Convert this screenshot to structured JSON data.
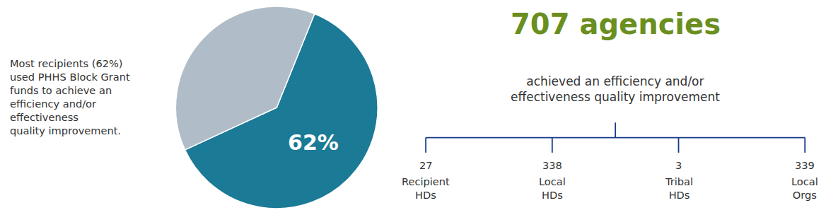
{
  "chart_data": [
    {
      "type": "pie",
      "values": [
        62,
        38
      ],
      "colors": [
        "#1b7a96",
        "#b0bdc8"
      ],
      "data_labels": true,
      "value_labels": [
        "62%",
        null
      ],
      "annotations": [
        {
          "text": "Most recipients (62%)\nused PHHS Block Grant\nfunds to achieve an\nefficiency and/or\neffectiveness\nquality improvement."
        },
        {
          "text": "707 agencies",
          "color": "#6a8f1f"
        },
        {
          "text": "achieved an efficiency and/or\neffectiveness quality improvement"
        }
      ]
    },
    {
      "type": "bracket",
      "categories": [
        "Recipient\nHDs",
        "Local\nHDs",
        "Tribal\nHDs",
        "Local\nOrgs"
      ],
      "values": [
        27,
        338,
        3,
        339
      ],
      "color": "#1a3a8a"
    }
  ]
}
